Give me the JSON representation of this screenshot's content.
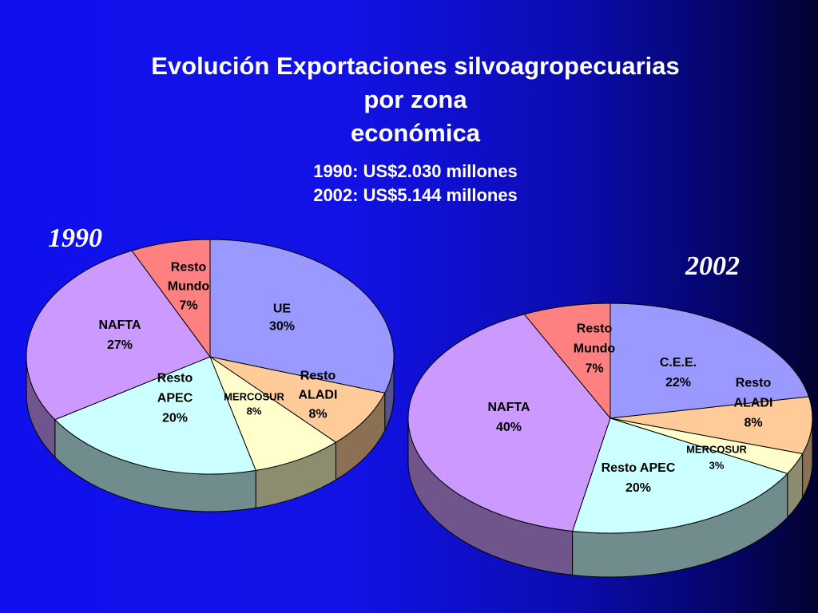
{
  "title": {
    "line1": "Evolución Exportaciones silvoagropecuarias",
    "line2": "por zona",
    "line3": "económica"
  },
  "subtitle": {
    "line1": "1990: US$2.030 millones",
    "line2": "2002: US$5.144 millones"
  },
  "colors": {
    "background": "#1010ee",
    "ue": "#9999ff",
    "aladi": "#ffcc99",
    "mercosur": "#ffffcc",
    "apec": "#ccffff",
    "nafta": "#cc99ff",
    "mundo": "#ff8080"
  },
  "chart_data": [
    {
      "type": "pie",
      "title": "1990",
      "slices": [
        {
          "key": "ue",
          "label": [
            "UE",
            "30%"
          ],
          "value": 30,
          "color": "#9999ff"
        },
        {
          "key": "aladi",
          "label": [
            "Resto",
            "ALADI",
            "8%"
          ],
          "value": 8,
          "color": "#ffcc99"
        },
        {
          "key": "mercosur",
          "label": [
            "MERCOSUR",
            "8%"
          ],
          "value": 8,
          "color": "#ffffcc"
        },
        {
          "key": "apec",
          "label": [
            "Resto",
            "APEC",
            "20%"
          ],
          "value": 20,
          "color": "#ccffff"
        },
        {
          "key": "nafta",
          "label": [
            "NAFTA",
            "27%"
          ],
          "value": 27,
          "color": "#cc99ff"
        },
        {
          "key": "mundo",
          "label": [
            "Resto",
            "Mundo",
            "7%"
          ],
          "value": 7,
          "color": "#ff8080"
        }
      ]
    },
    {
      "type": "pie",
      "title": "2002",
      "slices": [
        {
          "key": "cee",
          "label": [
            "C.E.E.",
            "22%"
          ],
          "value": 22,
          "color": "#9999ff"
        },
        {
          "key": "aladi",
          "label": [
            "Resto",
            "ALADI",
            "8%"
          ],
          "value": 8,
          "color": "#ffcc99"
        },
        {
          "key": "mercosur",
          "label": [
            "MERCOSUR",
            "3%"
          ],
          "value": 3,
          "color": "#ffffcc"
        },
        {
          "key": "apec",
          "label": [
            "Resto APEC",
            "20%"
          ],
          "value": 20,
          "color": "#ccffff"
        },
        {
          "key": "nafta",
          "label": [
            "NAFTA",
            "40%"
          ],
          "value": 40,
          "color": "#cc99ff"
        },
        {
          "key": "mundo",
          "label": [
            "Resto",
            "Mundo",
            "7%"
          ],
          "value": 7,
          "color": "#ff8080"
        }
      ]
    }
  ]
}
